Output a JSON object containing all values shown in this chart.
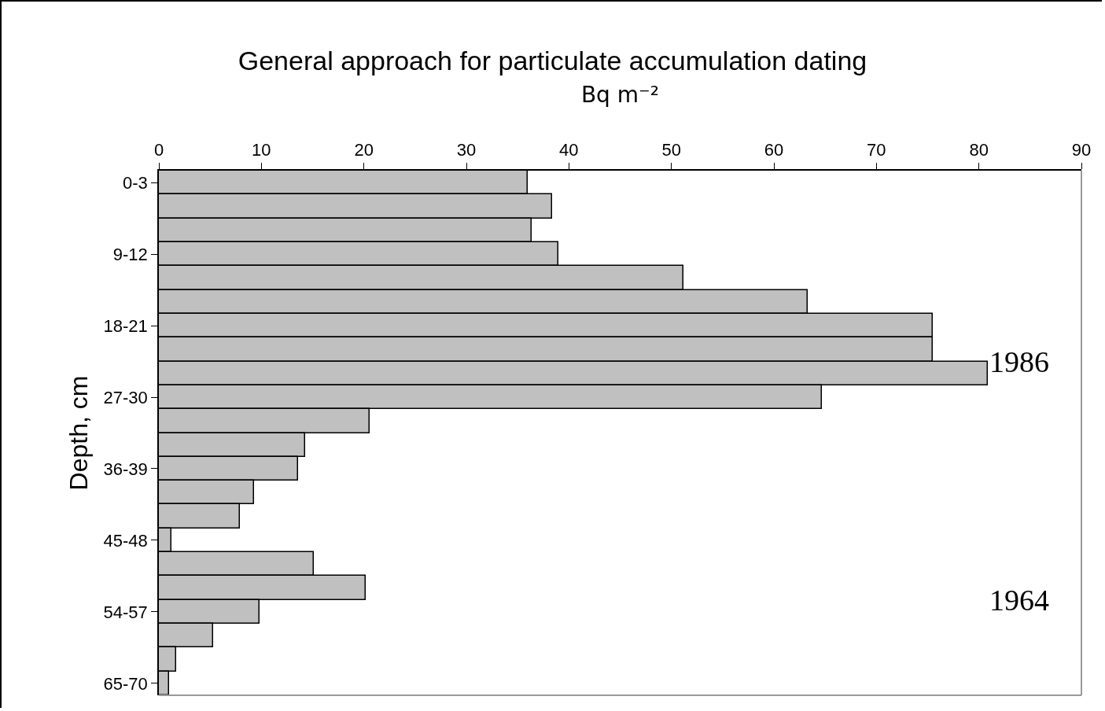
{
  "chart_data": {
    "type": "bar",
    "orientation": "horizontal",
    "title": "General approach for particulate accumulation dating",
    "xlabel": "Bq m⁻²",
    "ylabel": "Depth, cm",
    "categories": [
      "0-3",
      null,
      null,
      "9-12",
      null,
      null,
      "18-21",
      null,
      null,
      "27-30",
      null,
      null,
      "36-39",
      null,
      null,
      "45-48",
      null,
      null,
      "54-57",
      null,
      null,
      "65-70"
    ],
    "values": [
      36.0,
      38.4,
      36.4,
      39.0,
      51.2,
      63.3,
      75.5,
      75.5,
      80.9,
      64.7,
      20.6,
      14.3,
      13.6,
      9.3,
      7.9,
      1.2,
      15.1,
      20.2,
      9.8,
      5.3,
      1.7,
      1.0
    ],
    "color": "#c0c0c0",
    "xlim": [
      0,
      90
    ],
    "xticks": [
      0,
      10,
      20,
      30,
      40,
      50,
      60,
      70,
      80,
      90
    ],
    "annotations": [
      "1986",
      "1964"
    ]
  }
}
